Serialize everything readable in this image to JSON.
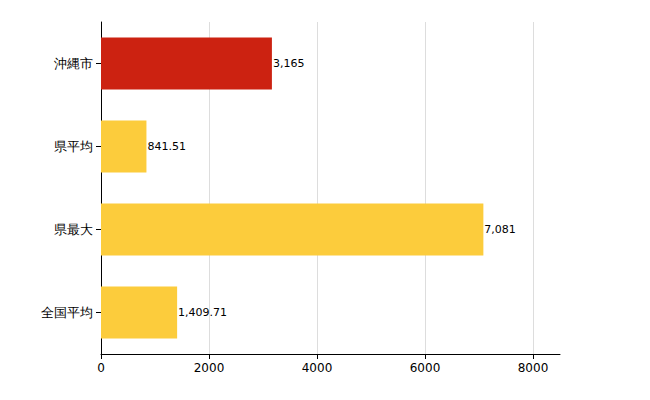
{
  "chart_data": {
    "type": "bar",
    "orientation": "horizontal",
    "categories": [
      "沖縄市",
      "県平均",
      "県最大",
      "全国平均"
    ],
    "values": [
      3165,
      841.51,
      7081,
      1409.71
    ],
    "value_labels": [
      "3,165",
      "841.51",
      "7,081",
      "1,409.71"
    ],
    "colors": [
      "#cc2211",
      "#fccc3c",
      "#fccc3c",
      "#fccc3c"
    ],
    "xlim": [
      0,
      8500
    ],
    "xticks": [
      0,
      2000,
      4000,
      6000,
      8000
    ],
    "grid": true,
    "data_labels": true
  }
}
